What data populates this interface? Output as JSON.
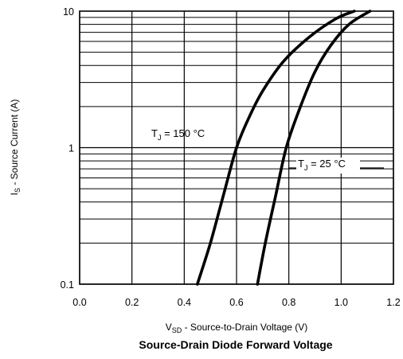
{
  "chart_data": {
    "type": "line",
    "title": "Source-Drain Diode Forward Voltage",
    "xlabel": {
      "main": "V",
      "sub": "SD",
      "rest": " - Source-to-Drain Voltage (V)"
    },
    "ylabel": {
      "main": "I",
      "sub": "S",
      "rest": " - Source Current (A)"
    },
    "xlim": [
      0.0,
      1.2
    ],
    "ylim": [
      0.1,
      10
    ],
    "yscale": "log",
    "grid": true,
    "x_ticks": [
      {
        "value": 0.0,
        "label": "0.0"
      },
      {
        "value": 0.2,
        "label": "0.2"
      },
      {
        "value": 0.4,
        "label": "0.4"
      },
      {
        "value": 0.6,
        "label": "0.6"
      },
      {
        "value": 0.8,
        "label": "0.8"
      },
      {
        "value": 1.0,
        "label": "1.0"
      },
      {
        "value": 1.2,
        "label": "1.2"
      }
    ],
    "y_ticks": [
      {
        "value": 0.1,
        "label": "0.1"
      },
      {
        "value": 1,
        "label": "1"
      },
      {
        "value": 10,
        "label": "10"
      }
    ],
    "series": [
      {
        "name": "T_J = 150 °C",
        "label_main": "T",
        "label_sub": "J",
        "label_rest": " = 150 °C",
        "x": [
          0.45,
          0.5,
          0.55,
          0.6,
          0.65,
          0.7,
          0.78,
          0.88,
          0.98,
          1.05
        ],
        "y": [
          0.1,
          0.2,
          0.45,
          1.0,
          1.7,
          2.6,
          4.3,
          6.5,
          8.8,
          10
        ]
      },
      {
        "name": "T_J = 25 °C",
        "label_main": "T",
        "label_sub": "J",
        "label_rest": " = 25 °C",
        "x": [
          0.68,
          0.71,
          0.75,
          0.79,
          0.84,
          0.9,
          0.96,
          1.03,
          1.11
        ],
        "y": [
          0.1,
          0.2,
          0.45,
          1.0,
          1.9,
          3.6,
          5.6,
          8.0,
          10
        ]
      }
    ]
  }
}
